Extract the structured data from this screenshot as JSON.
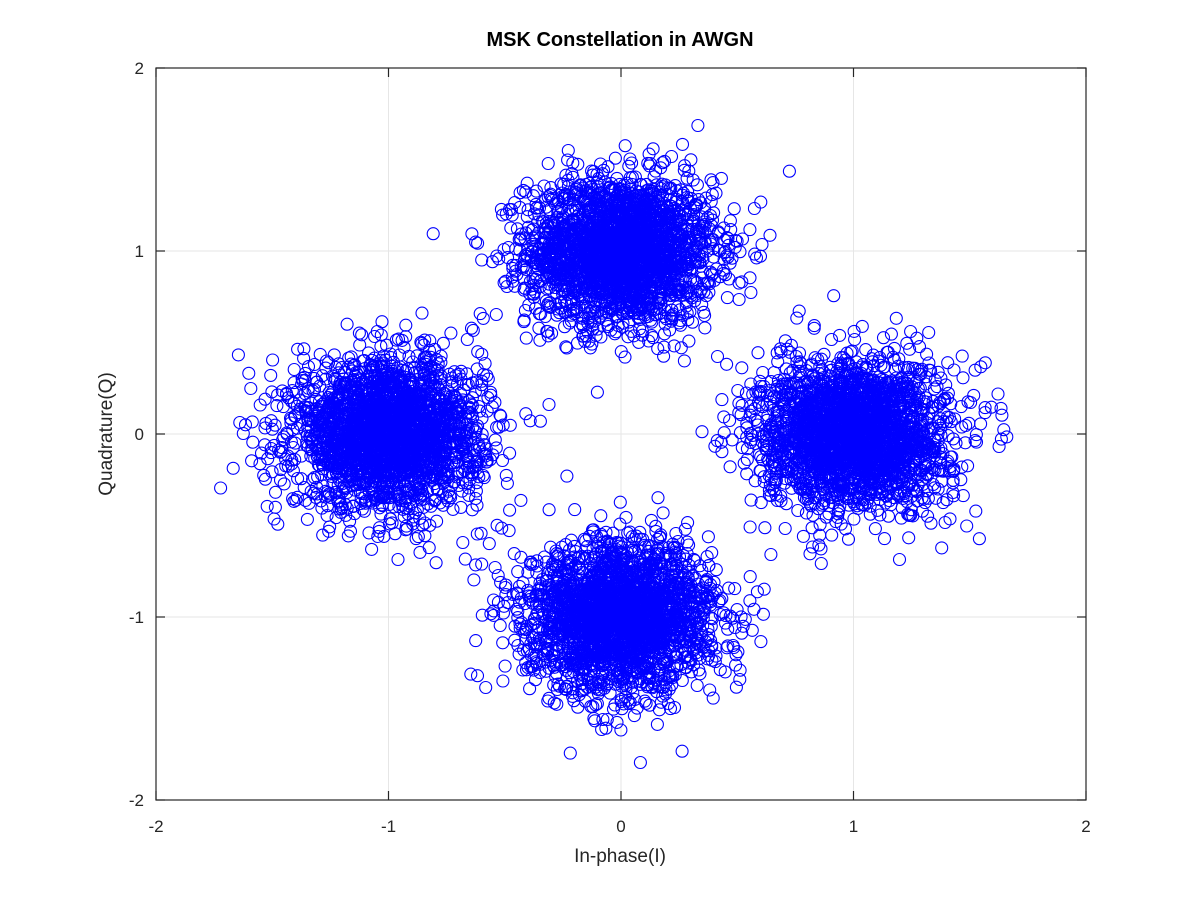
{
  "chart_data": {
    "type": "scatter",
    "title": "MSK Constellation in AWGN",
    "xlabel": "In-phase(I)",
    "ylabel": "Quadrature(Q)",
    "xlim": [
      -2,
      2
    ],
    "ylim": [
      -2,
      2
    ],
    "xticks": [
      -2,
      -1,
      0,
      1,
      2
    ],
    "yticks": [
      -2,
      -1,
      0,
      1,
      2
    ],
    "xtick_labels": [
      "-2",
      "-1",
      "0",
      "1",
      "2"
    ],
    "ytick_labels": [
      "-2",
      "-1",
      "0",
      "1",
      "2"
    ],
    "grid": true,
    "marker": "circle-open",
    "marker_color": "#0000ff",
    "clusters": [
      {
        "center": [
          0,
          1
        ],
        "std": 0.2
      },
      {
        "center": [
          -1,
          0
        ],
        "std": 0.2
      },
      {
        "center": [
          1,
          0
        ],
        "std": 0.2
      },
      {
        "center": [
          0,
          -1
        ],
        "std": 0.2
      }
    ],
    "points_per_cluster": 2500
  }
}
